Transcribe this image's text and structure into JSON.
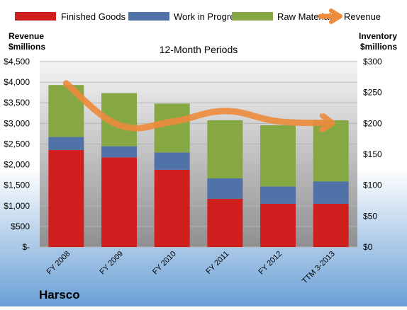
{
  "company": "Harsco",
  "colors": {
    "finished_goods": "#d01f1f",
    "work_in_progress": "#4f73a9",
    "raw_materials": "#86a844",
    "revenue": "#ee8b3c",
    "bg_top": "#ffffff",
    "bg_bottom": "#6a9fd6",
    "plot_top": "#f4f4f4",
    "plot_bottom": "#8f8f8f"
  },
  "chart_data": {
    "type": "bar",
    "stacked": true,
    "title": "12-Month Periods",
    "categories": [
      "FY 2008",
      "FY 2009",
      "FY 2010",
      "FY 2011",
      "FY 2012",
      "TTM 3-2013"
    ],
    "left_axis": {
      "label_line1": "Revenue",
      "label_line2": "$millions",
      "ylim": [
        0,
        4500
      ],
      "ticks": [
        0,
        500,
        1000,
        1500,
        2000,
        2500,
        3000,
        3500,
        4000,
        4500
      ],
      "tick_labels": [
        "$-",
        "$500",
        "$1,000",
        "$1,500",
        "$2,000",
        "$2,500",
        "$3,000",
        "$3,500",
        "$4,000",
        "$4,500"
      ]
    },
    "right_axis": {
      "label_line1": "Inventory",
      "label_line2": "$millions",
      "ylim": [
        0,
        300
      ],
      "ticks": [
        0,
        50,
        100,
        150,
        200,
        250,
        300
      ],
      "tick_labels": [
        "$0",
        "$50",
        "$100",
        "$150",
        "$200",
        "$250",
        "$300"
      ]
    },
    "series": [
      {
        "name": "Finished Goods",
        "axis": "right",
        "kind": "bar",
        "color_key": "finished_goods",
        "values": [
          157,
          145,
          125,
          78,
          70,
          70
        ]
      },
      {
        "name": "Work in Progress",
        "axis": "right",
        "kind": "bar",
        "color_key": "work_in_progress",
        "values": [
          21,
          18,
          28,
          33,
          28,
          36
        ]
      },
      {
        "name": "Raw Materials",
        "axis": "right",
        "kind": "bar",
        "color_key": "raw_materials",
        "values": [
          84,
          86,
          79,
          94,
          99,
          99
        ]
      },
      {
        "name": "Revenue",
        "axis": "left",
        "kind": "line",
        "color_key": "revenue",
        "values": [
          3970,
          2960,
          3040,
          3300,
          3050,
          3010
        ]
      }
    ],
    "legend_position": "top",
    "grid": true
  }
}
